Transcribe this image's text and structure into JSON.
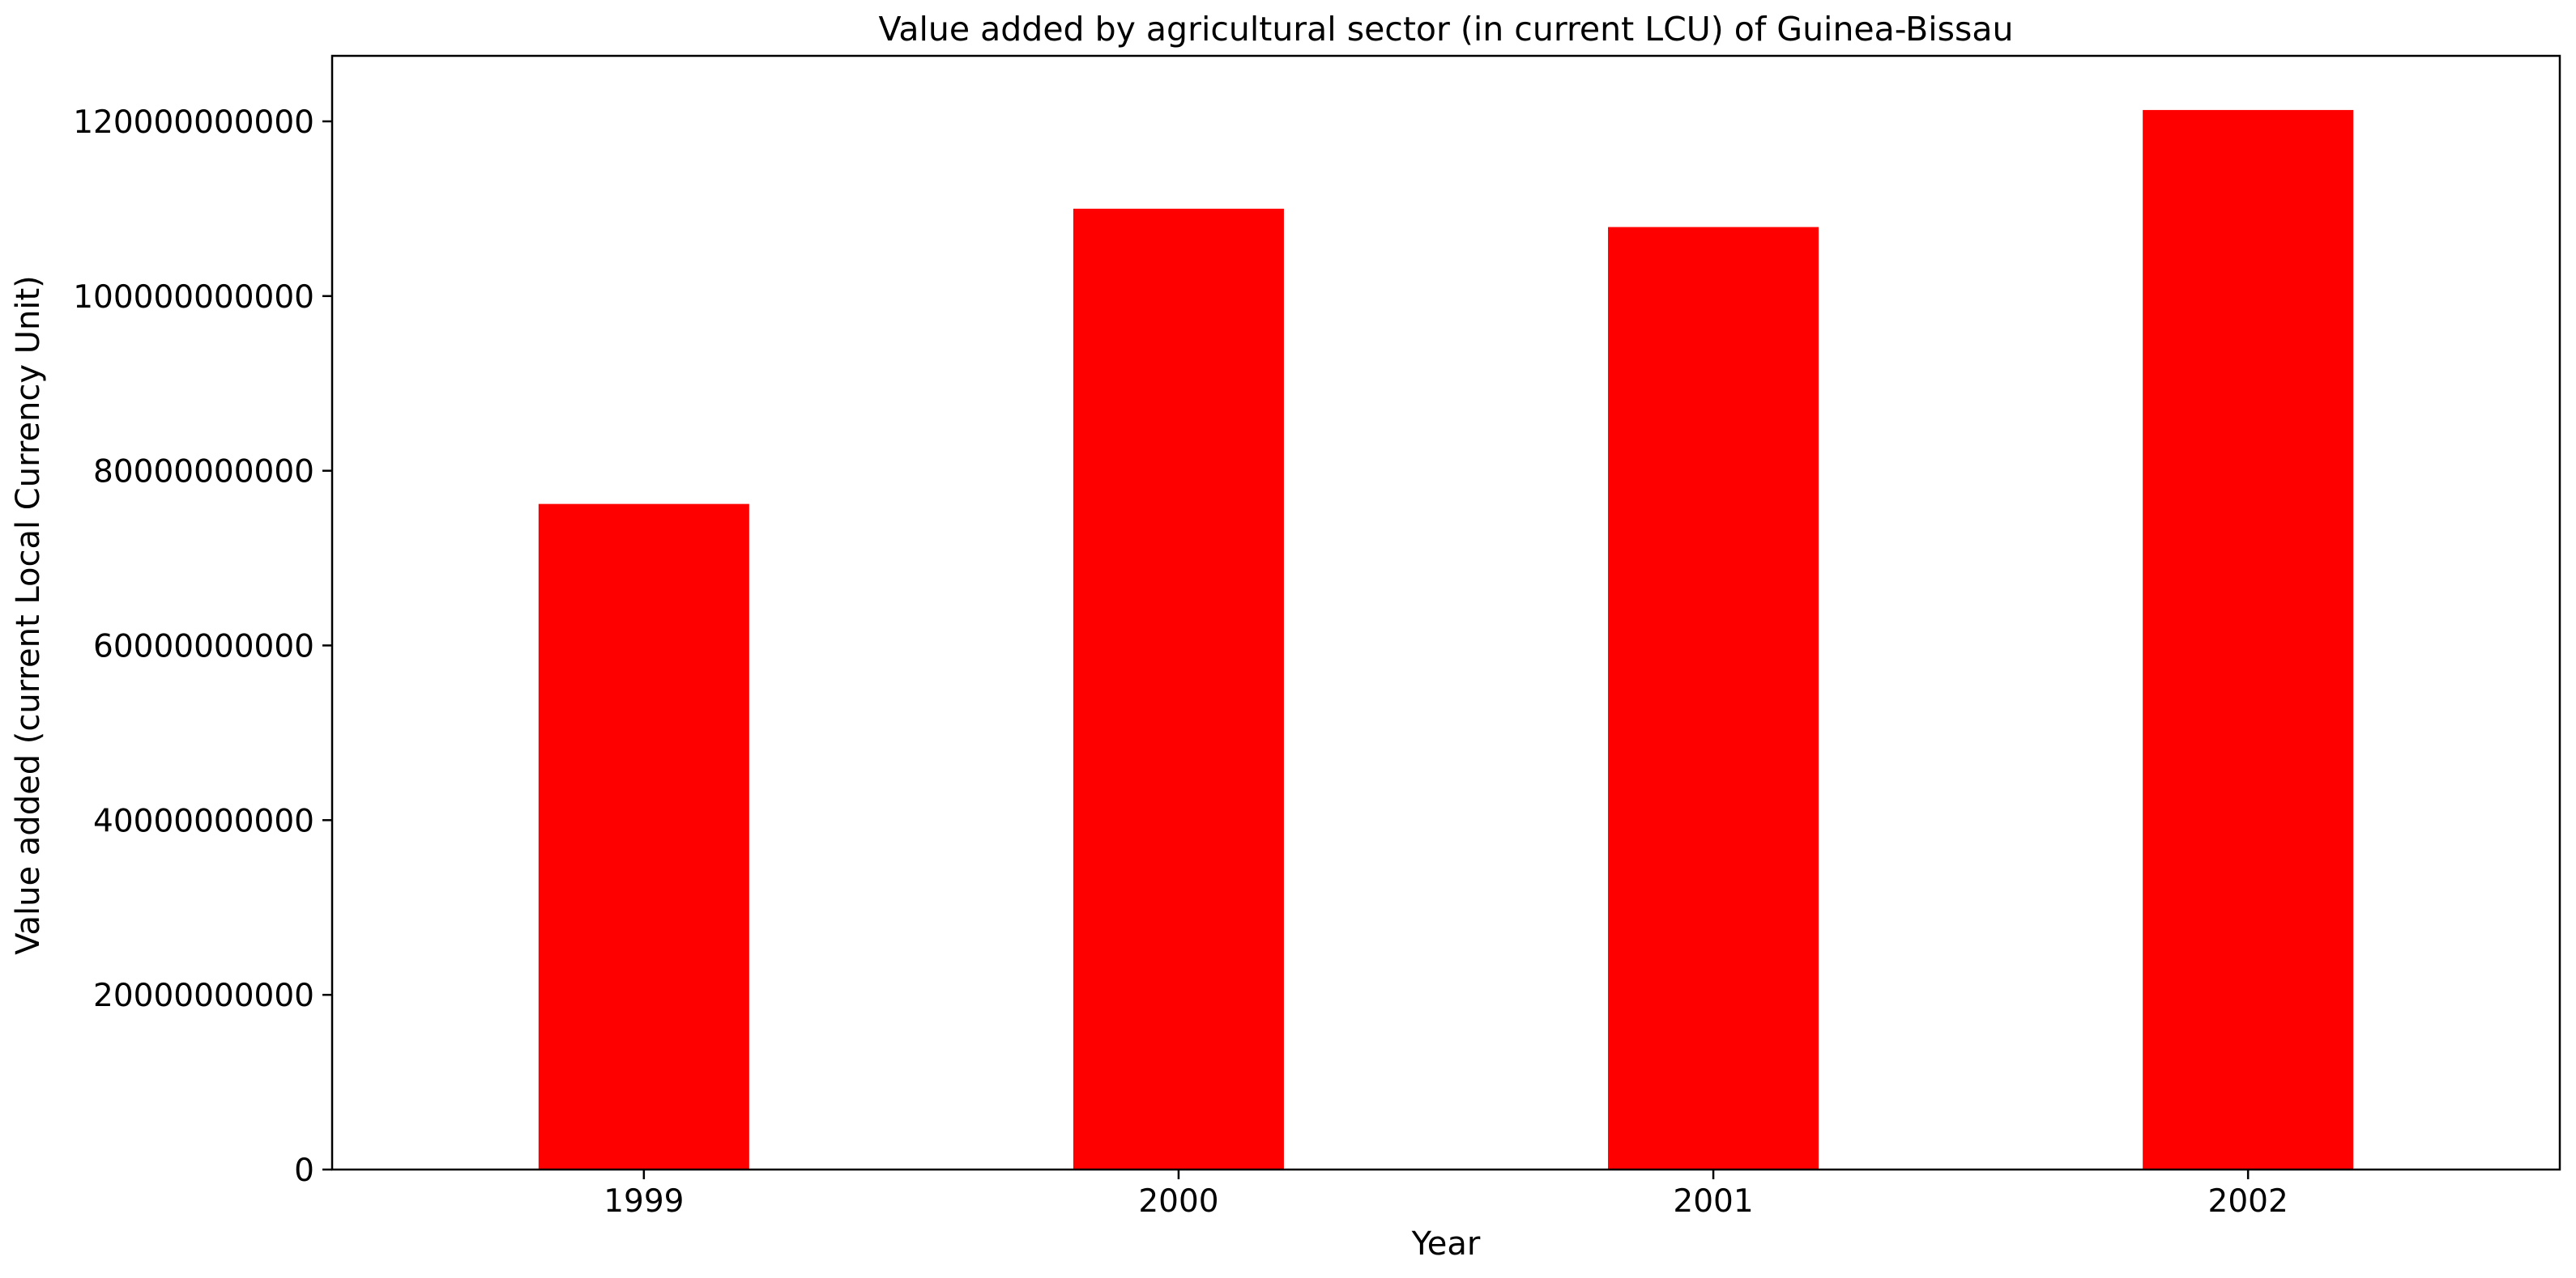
{
  "chart_data": {
    "type": "bar",
    "title": "Value added by agricultural sector (in current LCU) of Guinea-Bissau",
    "xlabel": "Year",
    "ylabel": "Value added (current Local Currency Unit)",
    "categories": [
      "1999",
      "2000",
      "2001",
      "2002"
    ],
    "values": [
      76200000000,
      110000000000,
      107900000000,
      121300000000
    ],
    "ylim": [
      0,
      127500000000
    ],
    "yticks": [
      0,
      20000000000,
      40000000000,
      60000000000,
      80000000000,
      100000000000,
      120000000000
    ],
    "ytick_labels": [
      "0",
      "20000000000",
      "40000000000",
      "60000000000",
      "80000000000",
      "100000000000",
      "120000000000"
    ],
    "bar_color": "#ff0000",
    "grid": false,
    "legend": "none"
  }
}
